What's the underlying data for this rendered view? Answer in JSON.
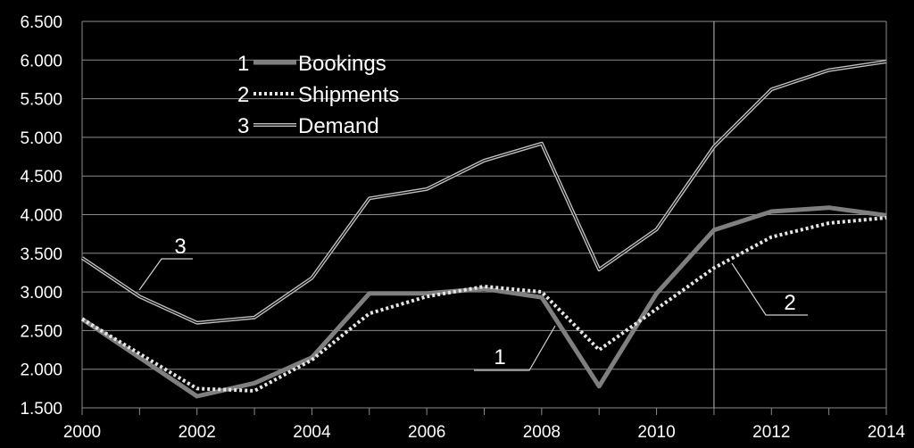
{
  "chart_data": {
    "type": "line",
    "x": [
      2000,
      2001,
      2002,
      2003,
      2004,
      2005,
      2006,
      2007,
      2008,
      2009,
      2010,
      2011,
      2012,
      2013,
      2014
    ],
    "xticks": [
      "2000",
      "2002",
      "2004",
      "2006",
      "2008",
      "2010",
      "2012",
      "2014"
    ],
    "yticks": [
      "1.500",
      "2.000",
      "2.500",
      "3.000",
      "3.500",
      "4.000",
      "4.500",
      "5.000",
      "5.500",
      "6.000",
      "6.500"
    ],
    "ylim": [
      1500,
      6500
    ],
    "xlim": [
      2000,
      2014
    ],
    "grid": "horizontal",
    "vertical_marker_x": 2011,
    "legend_position": "top-left",
    "series": [
      {
        "name": "Bookings",
        "number": "1",
        "style": "solid-thick",
        "color": "#7f7f7f",
        "values": [
          2650,
          2150,
          1650,
          1820,
          2150,
          2980,
          2980,
          3040,
          2930,
          1780,
          2980,
          3800,
          4040,
          4090,
          3990
        ]
      },
      {
        "name": "Shipments",
        "number": "2",
        "style": "dotted",
        "color": "#d9d9d9",
        "values": [
          2650,
          2200,
          1750,
          1720,
          2120,
          2720,
          2940,
          3070,
          3000,
          2250,
          2780,
          3310,
          3710,
          3890,
          3960
        ]
      },
      {
        "name": "Demand",
        "number": "3",
        "style": "double",
        "color": "#bfbfbf",
        "values": [
          3440,
          2940,
          2600,
          2670,
          3180,
          4210,
          4330,
          4700,
          4920,
          3290,
          3810,
          4880,
          5620,
          5870,
          5980
        ]
      }
    ],
    "callouts": [
      "1",
      "2",
      "3"
    ]
  }
}
